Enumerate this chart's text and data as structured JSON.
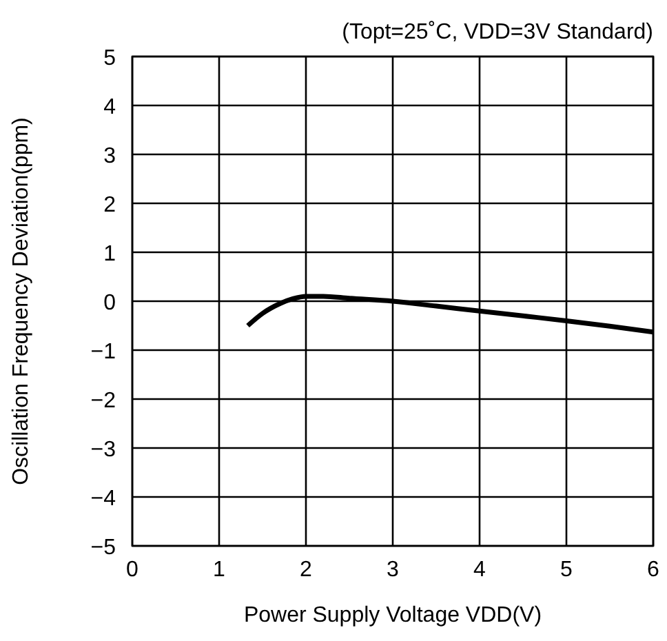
{
  "chart_data": {
    "type": "line",
    "title": "(Topt=25˚C, VDD=3V Standard)",
    "xlabel": "Power Supply Voltage VDD(V)",
    "ylabel": "Oscillation Frequency Deviation(ppm)",
    "series": [
      {
        "color": "#000000",
        "x": [
          1.33,
          1.5,
          1.7,
          1.85,
          2.0,
          2.2,
          2.5,
          3.0,
          3.5,
          4.0,
          4.5,
          5.0,
          5.5,
          6.0
        ],
        "values": [
          -0.5,
          -0.25,
          -0.05,
          0.05,
          0.1,
          0.1,
          0.06,
          0.0,
          -0.1,
          -0.2,
          -0.3,
          -0.4,
          -0.51,
          -0.63
        ]
      }
    ],
    "xlim": [
      0,
      6
    ],
    "xticks": [
      0,
      1,
      2,
      3,
      4,
      5,
      6
    ],
    "ylim": [
      -5,
      5
    ],
    "yticks": [
      {
        "value": -5,
        "label": "−5"
      },
      {
        "value": -4,
        "label": "−4"
      },
      {
        "value": -3,
        "label": "−3"
      },
      {
        "value": -2,
        "label": "−2"
      },
      {
        "value": -1,
        "label": "−1"
      },
      0,
      1,
      2,
      3,
      4,
      5
    ],
    "grid": true,
    "marker": "none",
    "line_style": "solid"
  }
}
